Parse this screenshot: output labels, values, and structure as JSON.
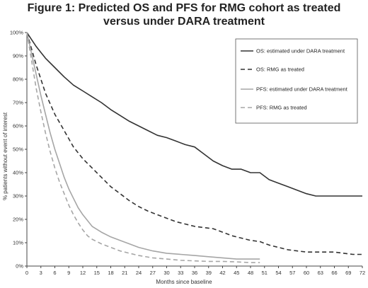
{
  "chart_data": {
    "type": "line",
    "title_line1": "Figure 1: Predicted OS and PFS for RMG cohort as treated",
    "title_line2": "versus under DARA treatment",
    "xlabel": "Months since baseline",
    "ylabel": "% patients without event of interest",
    "xlim": [
      0,
      72
    ],
    "ylim": [
      0,
      100
    ],
    "xticks": [
      0,
      3,
      6,
      9,
      12,
      15,
      18,
      21,
      24,
      27,
      30,
      33,
      36,
      39,
      42,
      45,
      48,
      51,
      54,
      57,
      60,
      63,
      66,
      69,
      72
    ],
    "yticks": [
      0,
      10,
      20,
      30,
      40,
      50,
      60,
      70,
      80,
      90,
      100
    ],
    "ytick_labels": [
      "0%",
      "10%",
      "20%",
      "30%",
      "40%",
      "50%",
      "60%",
      "70%",
      "80%",
      "90%",
      "100%"
    ],
    "grid": false,
    "legend_position": "top-right",
    "series": [
      {
        "name": "OS: estimated under DARA treatment",
        "style": "solid",
        "color": "#333333",
        "width": 1.6,
        "x": [
          0,
          1,
          2,
          3,
          4,
          6,
          8,
          10,
          12,
          14,
          16,
          18,
          20,
          22,
          24,
          26,
          28,
          30,
          32,
          34,
          36,
          38,
          40,
          42,
          44,
          46,
          48,
          50,
          52,
          54,
          56,
          58,
          60,
          62,
          64,
          66,
          68,
          69,
          72
        ],
        "y": [
          100,
          97,
          94,
          91.5,
          89,
          85,
          81,
          77.5,
          75,
          72.5,
          70,
          67,
          64.5,
          62,
          60,
          58,
          56,
          55,
          53.5,
          52,
          51,
          48,
          45,
          43,
          41.5,
          41.5,
          40,
          40,
          37,
          35.5,
          34,
          32.5,
          31,
          30,
          30,
          30,
          30,
          30,
          30
        ]
      },
      {
        "name": "OS: RMG as treated",
        "style": "dashed",
        "color": "#333333",
        "width": 1.6,
        "x": [
          0,
          1,
          2,
          3,
          4,
          6,
          8,
          10,
          12,
          14,
          16,
          18,
          20,
          22,
          24,
          26,
          28,
          30,
          32,
          34,
          36,
          38,
          40,
          42,
          44,
          46,
          48,
          50,
          52,
          54,
          56,
          58,
          60,
          62,
          64,
          66,
          68,
          70,
          72
        ],
        "y": [
          100,
          93,
          86,
          80,
          74,
          65,
          58,
          51,
          46,
          42,
          38,
          34,
          31,
          28,
          25.5,
          23.5,
          22,
          20.5,
          19,
          18,
          17,
          16.5,
          16,
          14.5,
          13,
          12,
          11,
          10.5,
          9,
          8,
          7,
          6.5,
          6,
          6,
          6,
          6,
          5.5,
          5,
          5
        ]
      },
      {
        "name": "PFS: estimated under DARA treatment",
        "style": "solid",
        "color": "#a6a6a6",
        "width": 1.6,
        "x": [
          0,
          1,
          2,
          3,
          4,
          5,
          6,
          7,
          8,
          9,
          10,
          11,
          12,
          13,
          14,
          16,
          18,
          20,
          22,
          24,
          27,
          30,
          33,
          36,
          39,
          42,
          45,
          48,
          50
        ],
        "y": [
          100,
          91,
          82,
          73,
          65,
          57,
          50,
          44,
          38,
          33,
          29,
          25,
          22,
          19.5,
          17,
          14.5,
          12.5,
          11,
          9.5,
          8,
          6.5,
          5.5,
          5,
          4.5,
          4,
          3.5,
          3,
          3,
          3
        ]
      },
      {
        "name": "PFS: RMG as treated",
        "style": "dashed",
        "color": "#a6a6a6",
        "width": 1.6,
        "x": [
          0,
          1,
          2,
          3,
          4,
          5,
          6,
          7,
          8,
          9,
          10,
          11,
          12,
          13,
          14,
          16,
          18,
          20,
          22,
          24,
          27,
          30,
          33,
          36,
          39,
          42,
          45,
          48,
          50
        ],
        "y": [
          100,
          88,
          76,
          66,
          57,
          49,
          42,
          36,
          31,
          26,
          22,
          18.5,
          15.5,
          13,
          11.5,
          9.5,
          8,
          6.5,
          5.5,
          4.5,
          3.5,
          3,
          2.5,
          2.2,
          2,
          2,
          1.8,
          1.5,
          1.5
        ]
      }
    ]
  }
}
